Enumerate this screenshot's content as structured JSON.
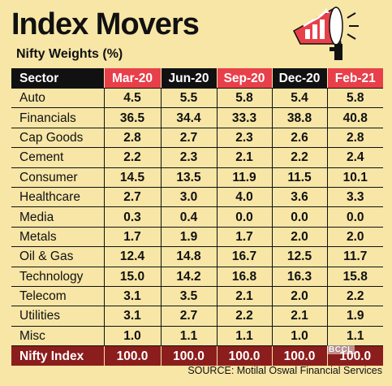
{
  "header": {
    "title": "Index Movers",
    "subtitle": "Nifty Weights (%)"
  },
  "source": "SOURCE: Motilal Oswal Financial Services",
  "watermark": "BCCL",
  "colors": {
    "background": "#f7e6a6",
    "header_dark": "#111111",
    "header_red": "#e8404a",
    "total_row": "#8c1d1d"
  },
  "icons": {
    "megaphone": "megaphone-icon"
  },
  "chart_data": {
    "type": "table",
    "title": "Index Movers",
    "subtitle": "Nifty Weights (%)",
    "columns": [
      "Sector",
      "Mar-20",
      "Jun-20",
      "Sep-20",
      "Dec-20",
      "Feb-21"
    ],
    "highlighted_columns": [
      "Mar-20",
      "Sep-20",
      "Feb-21"
    ],
    "rows": [
      {
        "sector": "Auto",
        "values": [
          "4.5",
          "5.5",
          "5.8",
          "5.4",
          "5.8"
        ]
      },
      {
        "sector": "Financials",
        "values": [
          "36.5",
          "34.4",
          "33.3",
          "38.8",
          "40.8"
        ]
      },
      {
        "sector": "Cap Goods",
        "values": [
          "2.8",
          "2.7",
          "2.3",
          "2.6",
          "2.8"
        ]
      },
      {
        "sector": "Cement",
        "values": [
          "2.2",
          "2.3",
          "2.1",
          "2.2",
          "2.4"
        ]
      },
      {
        "sector": "Consumer",
        "values": [
          "14.5",
          "13.5",
          "11.9",
          "11.5",
          "10.1"
        ]
      },
      {
        "sector": "Healthcare",
        "values": [
          "2.7",
          "3.0",
          "4.0",
          "3.6",
          "3.3"
        ]
      },
      {
        "sector": "Media",
        "values": [
          "0.3",
          "0.4",
          "0.0",
          "0.0",
          "0.0"
        ]
      },
      {
        "sector": "Metals",
        "values": [
          "1.7",
          "1.9",
          "1.7",
          "2.0",
          "2.0"
        ]
      },
      {
        "sector": "Oil & Gas",
        "values": [
          "12.4",
          "14.8",
          "16.7",
          "12.5",
          "11.7"
        ]
      },
      {
        "sector": "Technology",
        "values": [
          "15.0",
          "14.2",
          "16.8",
          "16.3",
          "15.8"
        ]
      },
      {
        "sector": "Telecom",
        "values": [
          "3.1",
          "3.5",
          "2.1",
          "2.0",
          "2.2"
        ]
      },
      {
        "sector": "Utilities",
        "values": [
          "3.1",
          "2.7",
          "2.2",
          "2.1",
          "1.9"
        ]
      },
      {
        "sector": "Misc",
        "values": [
          "1.0",
          "1.1",
          "1.1",
          "1.0",
          "1.1"
        ]
      }
    ],
    "total": {
      "sector": "Nifty Index",
      "values": [
        "100.0",
        "100.0",
        "100.0",
        "100.0",
        "100.0"
      ]
    }
  }
}
